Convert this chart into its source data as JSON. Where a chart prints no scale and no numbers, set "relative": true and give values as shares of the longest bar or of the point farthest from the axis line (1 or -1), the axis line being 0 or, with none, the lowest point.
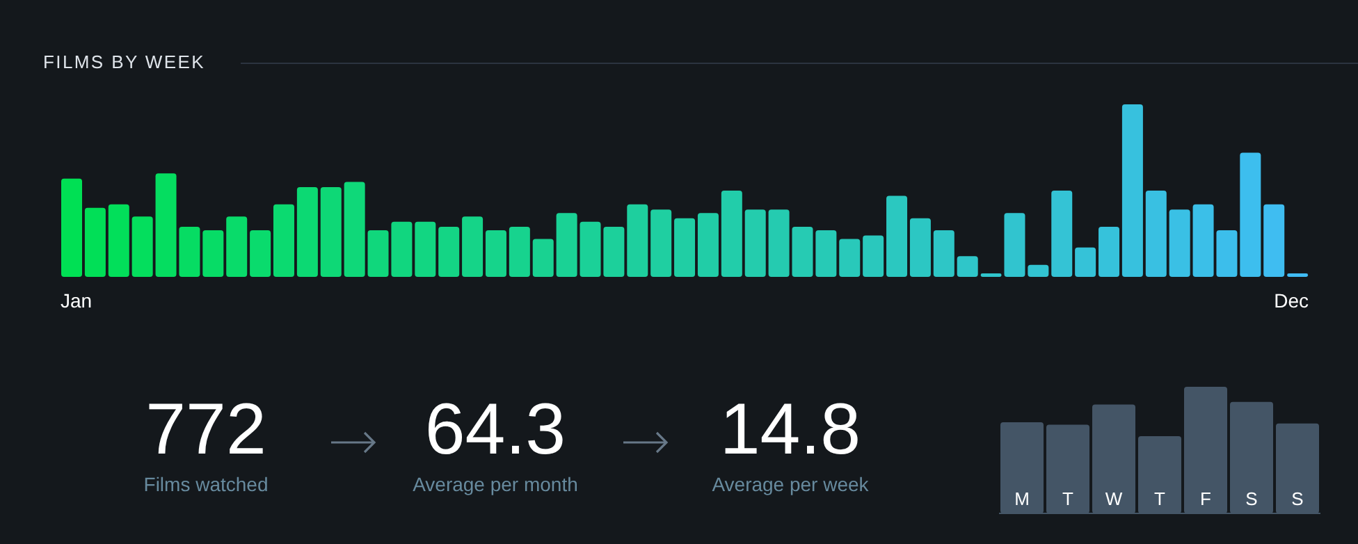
{
  "chart_data": [
    {
      "type": "bar",
      "title": "FILMS BY WEEK",
      "relative": true,
      "categories": [
        "Jan",
        null,
        null,
        null,
        null,
        null,
        null,
        null,
        null,
        null,
        null,
        null,
        null,
        null,
        null,
        null,
        null,
        null,
        null,
        null,
        null,
        null,
        null,
        null,
        null,
        null,
        null,
        null,
        null,
        null,
        null,
        null,
        null,
        null,
        null,
        null,
        null,
        null,
        null,
        null,
        null,
        null,
        null,
        null,
        null,
        null,
        null,
        null,
        null,
        null,
        null,
        null,
        "Dec"
      ],
      "values": [
        0.57,
        0.4,
        0.42,
        0.35,
        0.6,
        0.29,
        0.27,
        0.35,
        0.27,
        0.42,
        0.52,
        0.52,
        0.55,
        0.27,
        0.32,
        0.32,
        0.29,
        0.35,
        0.27,
        0.29,
        0.22,
        0.37,
        0.32,
        0.29,
        0.42,
        0.39,
        0.34,
        0.37,
        0.5,
        0.39,
        0.39,
        0.29,
        0.27,
        0.22,
        0.24,
        0.47,
        0.34,
        0.27,
        0.12,
        0.02,
        0.37,
        0.07,
        0.5,
        0.17,
        0.29,
        1,
        0.5,
        0.39,
        0.42,
        0.27,
        0.72,
        0.42,
        0.02
      ],
      "colors": [
        "#00e054",
        "#01df57",
        "#02df5a",
        "#04de5d",
        "#05dd60",
        "#06dc63",
        "#07dc66",
        "#09db6a",
        "#0adb6d",
        "#0bda70",
        "#0cd973",
        "#0ed876",
        "#0fd879",
        "#10d77c",
        "#11d67f",
        "#12d682",
        "#14d585",
        "#15d488",
        "#16d48b",
        "#17d38e",
        "#19d291",
        "#1ad295",
        "#1bd198",
        "#1cd09b",
        "#1ecf9e",
        "#1fcfa1",
        "#20cea4",
        "#21cda7",
        "#22cdaa",
        "#24ccad",
        "#25cbb0",
        "#26cbb3",
        "#27cab6",
        "#29c9ba",
        "#2ac8bd",
        "#2bc8c0",
        "#2cc7c3",
        "#2ec6c6",
        "#2fc6c9",
        "#30c5cc",
        "#31c4cf",
        "#32c4d2",
        "#34c3d5",
        "#35c2d8",
        "#36c2db",
        "#37c1de",
        "#39c0e2",
        "#3ac0e5",
        "#3bbfe8",
        "#3cbeeb",
        "#3dbeee",
        "#3fbdf1",
        "#40bcf4"
      ]
    },
    {
      "type": "other",
      "categories": [
        "Films watched",
        "Average per month",
        "Average per week"
      ],
      "values": [
        772,
        64.3,
        14.8
      ],
      "data_labels": true
    },
    {
      "type": "bar",
      "relative": true,
      "categories": [
        "M",
        "T",
        "W",
        "T",
        "F",
        "S",
        "S"
      ],
      "values": [
        0.72,
        0.7,
        0.86,
        0.61,
        1,
        0.88,
        0.71
      ],
      "color": "#445566"
    }
  ]
}
